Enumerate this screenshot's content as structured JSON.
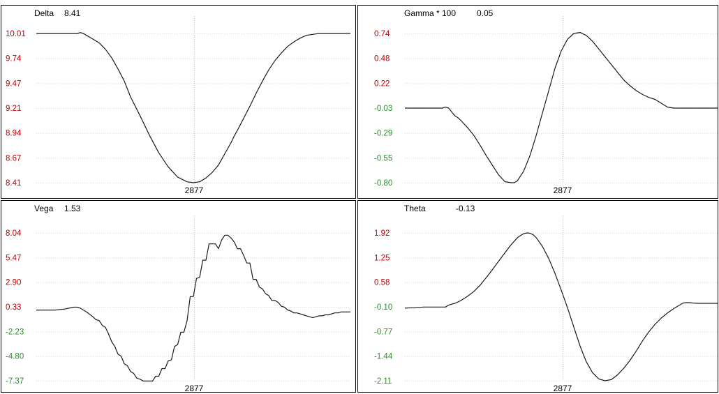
{
  "colors": {
    "positive_tick": "#c00000",
    "negative_tick": "#2e8b2e",
    "line": "#1a1a1a",
    "grid": "#d4d4d4",
    "border": "#000000",
    "marker": "#b4b4b4",
    "background": "#ffffff"
  },
  "chart_data": [
    {
      "type": "line",
      "title": "Delta",
      "current_value": "8.41",
      "x_marker_label": "2877",
      "grid": true,
      "y_ticks": [
        "10.01",
        "9.74",
        "9.47",
        "9.21",
        "8.94",
        "8.67",
        "8.41"
      ],
      "ylim": [
        8.41,
        10.01
      ],
      "x": [
        0,
        3,
        6,
        9,
        12,
        13,
        14,
        15,
        16,
        18,
        20,
        22,
        24,
        26,
        28,
        30,
        33,
        36,
        39,
        42,
        45,
        48,
        50,
        52,
        54,
        56,
        58,
        59,
        60,
        61,
        62,
        63,
        64,
        66,
        68,
        70,
        72,
        74,
        76,
        78,
        80,
        82,
        84,
        86,
        88,
        90,
        92,
        94,
        95,
        96,
        97,
        98,
        100
      ],
      "y": [
        10.01,
        10.01,
        10.01,
        10.01,
        10.01,
        10.01,
        10.02,
        10.01,
        9.99,
        9.95,
        9.91,
        9.84,
        9.75,
        9.63,
        9.5,
        9.33,
        9.13,
        8.92,
        8.73,
        8.58,
        8.47,
        8.42,
        8.41,
        8.42,
        8.46,
        8.52,
        8.6,
        8.66,
        8.72,
        8.78,
        8.84,
        8.91,
        8.97,
        9.1,
        9.23,
        9.37,
        9.5,
        9.62,
        9.72,
        9.8,
        9.87,
        9.92,
        9.96,
        9.99,
        10.0,
        10.01,
        10.01,
        10.01,
        10.01,
        10.01,
        10.01,
        10.01,
        10.01
      ]
    },
    {
      "type": "line",
      "title": "Gamma * 100",
      "current_value": "0.05",
      "x_marker_label": "2877",
      "grid": true,
      "y_ticks": [
        "0.74",
        "0.48",
        "0.22",
        "-0.03",
        "-0.29",
        "-0.55",
        "-0.80"
      ],
      "ylim": [
        -0.8,
        0.74
      ],
      "x": [
        0,
        3,
        6,
        9,
        11,
        12,
        13,
        14,
        15,
        16,
        17,
        18,
        20,
        22,
        24,
        26,
        28,
        30,
        32,
        34,
        35,
        36,
        38,
        40,
        42,
        44,
        46,
        48,
        50,
        52,
        54,
        56,
        58,
        60,
        62,
        64,
        66,
        68,
        70,
        72,
        74,
        76,
        78,
        80,
        82,
        84,
        86,
        88,
        90,
        92,
        94,
        96,
        98,
        100
      ],
      "y": [
        -0.03,
        -0.03,
        -0.03,
        -0.03,
        -0.03,
        -0.03,
        -0.02,
        -0.03,
        -0.07,
        -0.11,
        -0.13,
        -0.16,
        -0.23,
        -0.31,
        -0.41,
        -0.52,
        -0.62,
        -0.72,
        -0.79,
        -0.8,
        -0.8,
        -0.78,
        -0.68,
        -0.52,
        -0.31,
        -0.08,
        0.15,
        0.38,
        0.56,
        0.68,
        0.74,
        0.75,
        0.72,
        0.66,
        0.58,
        0.5,
        0.42,
        0.34,
        0.26,
        0.2,
        0.15,
        0.11,
        0.08,
        0.06,
        0.02,
        -0.02,
        -0.03,
        -0.03,
        -0.03,
        -0.03,
        -0.03,
        -0.03,
        -0.03,
        -0.03
      ]
    },
    {
      "type": "line",
      "title": "Vega",
      "current_value": "1.53",
      "x_marker_label": "2877",
      "grid": true,
      "y_ticks": [
        "8.04",
        "5.47",
        "2.90",
        "0.33",
        "-2.23",
        "-4.80",
        "-7.37"
      ],
      "ylim": [
        -7.37,
        8.04
      ],
      "x": [
        0,
        3,
        6,
        9,
        12,
        13,
        14,
        15,
        16,
        18,
        19,
        20,
        21,
        22,
        23,
        24,
        25,
        26,
        27,
        28,
        29,
        30,
        31,
        32,
        33,
        34,
        35,
        36,
        37,
        38,
        39,
        40,
        41,
        42,
        43,
        44,
        45,
        46,
        47,
        48,
        49,
        50,
        51,
        52,
        53,
        54,
        55,
        56,
        57,
        58,
        59,
        60,
        61,
        62,
        63,
        64,
        65,
        66,
        67,
        68,
        69,
        70,
        71,
        72,
        73,
        74,
        75,
        76,
        77,
        78,
        79,
        80,
        81,
        82,
        83,
        84,
        85,
        86,
        87,
        88,
        89,
        90,
        91,
        92,
        93,
        94,
        95,
        96,
        97,
        98,
        99,
        100
      ],
      "y": [
        0,
        0,
        0,
        0.1,
        0.3,
        0.3,
        0.2,
        0,
        -0.2,
        -0.7,
        -1.0,
        -1.1,
        -1.6,
        -1.8,
        -2.5,
        -3.3,
        -3.8,
        -4.6,
        -4.8,
        -5.6,
        -5.8,
        -6.4,
        -6.6,
        -7.1,
        -7.2,
        -7.4,
        -7.4,
        -7.4,
        -7.4,
        -6.9,
        -6.9,
        -6.1,
        -6.1,
        -5.3,
        -5.2,
        -3.8,
        -3.6,
        -2.3,
        -2.3,
        -1.1,
        1.4,
        1.4,
        3.3,
        3.4,
        5.2,
        5.2,
        6.9,
        6.9,
        6.9,
        6.4,
        7.3,
        7.8,
        7.8,
        7.5,
        7.1,
        6.4,
        6.4,
        5.7,
        4.9,
        4.9,
        3.2,
        3.2,
        2.4,
        2.2,
        1.7,
        1.5,
        1.0,
        1.0,
        0.8,
        0.4,
        0.3,
        0,
        -0.1,
        -0.3,
        -0.3,
        -0.4,
        -0.5,
        -0.6,
        -0.7,
        -0.8,
        -0.7,
        -0.6,
        -0.6,
        -0.5,
        -0.5,
        -0.4,
        -0.3,
        -0.3,
        -0.2,
        -0.2,
        -0.2,
        -0.2
      ]
    },
    {
      "type": "line",
      "title": "Theta",
      "current_value": "-0.13",
      "x_marker_label": "2877",
      "grid": true,
      "y_ticks": [
        "1.92",
        "1.25",
        "0.58",
        "-0.10",
        "-0.77",
        "-1.44",
        "-2.11"
      ],
      "ylim": [
        -2.11,
        1.92
      ],
      "x": [
        0,
        3,
        6,
        9,
        12,
        13,
        14,
        15,
        16,
        18,
        20,
        22,
        24,
        26,
        28,
        30,
        32,
        34,
        36,
        37,
        38,
        39,
        40,
        41,
        42,
        44,
        46,
        48,
        50,
        52,
        54,
        56,
        58,
        60,
        62,
        64,
        66,
        68,
        70,
        72,
        74,
        76,
        78,
        80,
        82,
        84,
        86,
        88,
        89,
        90,
        91,
        92,
        94,
        96,
        98,
        100
      ],
      "y": [
        -0.13,
        -0.12,
        -0.1,
        -0.1,
        -0.1,
        -0.1,
        -0.05,
        -0.02,
        0,
        0.08,
        0.19,
        0.32,
        0.49,
        0.7,
        0.92,
        1.15,
        1.38,
        1.6,
        1.79,
        1.85,
        1.9,
        1.92,
        1.91,
        1.87,
        1.79,
        1.55,
        1.22,
        0.82,
        0.36,
        -0.12,
        -0.64,
        -1.16,
        -1.59,
        -1.89,
        -2.06,
        -2.11,
        -2.08,
        -1.95,
        -1.77,
        -1.55,
        -1.3,
        -1.02,
        -0.78,
        -0.57,
        -0.4,
        -0.26,
        -0.14,
        -0.04,
        0.01,
        0.02,
        0.02,
        0.01,
        0,
        0,
        0,
        0
      ]
    }
  ]
}
